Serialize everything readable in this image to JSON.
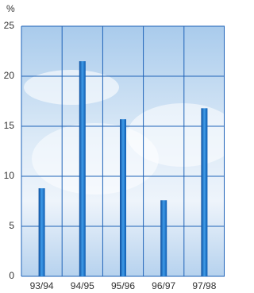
{
  "chart_data": {
    "type": "bar",
    "y_axis_label": "%",
    "categories": [
      "93/94",
      "94/95",
      "95/96",
      "96/97",
      "97/98"
    ],
    "values": [
      8.8,
      21.5,
      15.7,
      7.6,
      16.8
    ],
    "color": "#1a6fc4",
    "ylim": [
      0,
      25
    ],
    "yticks": [
      0,
      5,
      10,
      15,
      20,
      25
    ],
    "grid": true
  }
}
